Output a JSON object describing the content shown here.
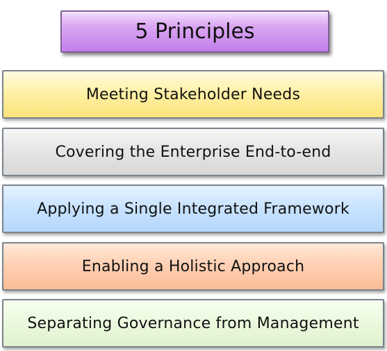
{
  "title": "5 Principles",
  "principles": [
    {
      "label": "Meeting Stakeholder Needs",
      "color": "#fff1a8"
    },
    {
      "label": "Covering the Enterprise End-to-end",
      "color": "#e6e6e6"
    },
    {
      "label": "Applying a Single Integrated Framework",
      "color": "#c9e3ff"
    },
    {
      "label": "Enabling a Holistic Approach",
      "color": "#ffd1b5"
    },
    {
      "label": "Separating Governance from Management",
      "color": "#ecf9df"
    }
  ]
}
